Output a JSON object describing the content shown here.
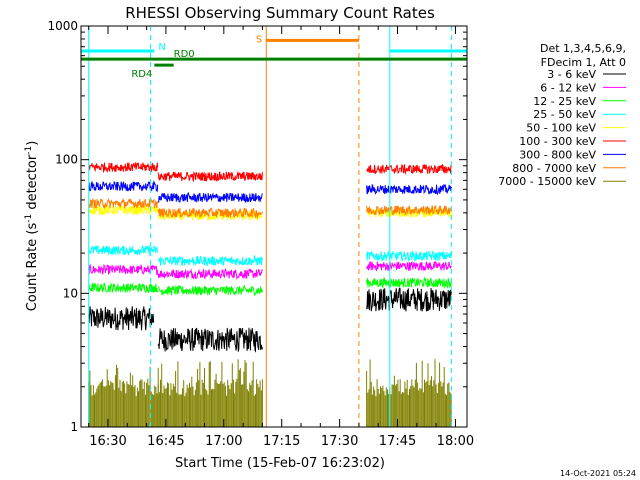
{
  "chart_data": {
    "type": "line",
    "title": "RHESSI Observing Summary Count Rates",
    "xlabel": "Start Time (15-Feb-07 16:23:02)",
    "ylabel": "Count Rate (s",
    "ylabel_sup": "-1",
    "ylabel_tail": " detector",
    "ylabel_close": ")",
    "y_scale": "log",
    "ylim": [
      1,
      1000
    ],
    "y_ticks": [
      {
        "v": 1,
        "label": "1"
      },
      {
        "v": 10,
        "label": "10"
      },
      {
        "v": 100,
        "label": "100"
      },
      {
        "v": 1000,
        "label": "1000"
      }
    ],
    "xlim": [
      "16:23",
      "18:03"
    ],
    "x_ticks": [
      {
        "t": "16:30",
        "label": "16:30"
      },
      {
        "t": "16:45",
        "label": "16:45"
      },
      {
        "t": "17:00",
        "label": "17:00"
      },
      {
        "t": "17:15",
        "label": "17:15"
      },
      {
        "t": "17:30",
        "label": "17:30"
      },
      {
        "t": "17:45",
        "label": "17:45"
      },
      {
        "t": "18:00",
        "label": "18:00"
      }
    ],
    "legend_placement": "right",
    "legend_header": [
      "Det 1,3,4,5,6,9,",
      "FDecim 1, Att 0"
    ],
    "series": [
      {
        "name": "3 - 6 keV",
        "color": "#000000",
        "segments": [
          {
            "from": "16:25",
            "to": "16:42",
            "level": 6.5
          },
          {
            "from": "16:43",
            "to": "17:10",
            "level": 4.5
          },
          {
            "from": "17:37",
            "to": "17:59",
            "level": 9
          }
        ]
      },
      {
        "name": "6 - 12 keV",
        "color": "#ff00ff",
        "segments": [
          {
            "from": "16:25",
            "to": "16:43",
            "level": 15
          },
          {
            "from": "16:43",
            "to": "17:10",
            "level": 14
          },
          {
            "from": "17:37",
            "to": "17:59",
            "level": 16
          }
        ]
      },
      {
        "name": "12 - 25 keV",
        "color": "#00ff00",
        "segments": [
          {
            "from": "16:25",
            "to": "16:43",
            "level": 11
          },
          {
            "from": "16:43",
            "to": "17:10",
            "level": 10.5
          },
          {
            "from": "17:37",
            "to": "17:59",
            "level": 12
          }
        ]
      },
      {
        "name": "25 - 50 keV",
        "color": "#00ffff",
        "segments": [
          {
            "from": "16:25",
            "to": "16:43",
            "level": 21
          },
          {
            "from": "16:43",
            "to": "17:10",
            "level": 17.5
          },
          {
            "from": "17:37",
            "to": "17:59",
            "level": 19
          }
        ]
      },
      {
        "name": "50 - 100 keV",
        "color": "#ffff00",
        "segments": [
          {
            "from": "16:25",
            "to": "16:43",
            "level": 42
          },
          {
            "from": "16:43",
            "to": "17:10",
            "level": 38
          },
          {
            "from": "17:37",
            "to": "17:59",
            "level": 40
          }
        ]
      },
      {
        "name": "100 - 300 keV",
        "color": "#ff0000",
        "segments": [
          {
            "from": "16:25",
            "to": "16:43",
            "level": 88
          },
          {
            "from": "16:43",
            "to": "17:10",
            "level": 75
          },
          {
            "from": "17:37",
            "to": "17:59",
            "level": 85
          }
        ]
      },
      {
        "name": "300 - 800 keV",
        "color": "#0000ff",
        "segments": [
          {
            "from": "16:25",
            "to": "16:43",
            "level": 63
          },
          {
            "from": "16:43",
            "to": "17:10",
            "level": 52
          },
          {
            "from": "17:37",
            "to": "17:59",
            "level": 60
          }
        ]
      },
      {
        "name": "800 - 7000 keV",
        "color": "#ff8000",
        "segments": [
          {
            "from": "16:25",
            "to": "16:43",
            "level": 47
          },
          {
            "from": "16:43",
            "to": "17:10",
            "level": 40
          },
          {
            "from": "17:37",
            "to": "17:59",
            "level": 42
          }
        ]
      },
      {
        "name": "7000 - 15000 keV",
        "color": "#808000",
        "segments": [
          {
            "from": "16:25",
            "to": "16:43",
            "level": 1.5
          },
          {
            "from": "16:43",
            "to": "17:10",
            "level": 1.5
          },
          {
            "from": "17:37",
            "to": "17:59",
            "level": 1.5
          }
        ]
      }
    ],
    "vertical_markers": [
      {
        "t": "16:25",
        "color": "#00ffff",
        "style": "solid"
      },
      {
        "t": "16:41",
        "color": "#00ffff",
        "style": "dashed"
      },
      {
        "t": "17:11",
        "color": "#ff8000",
        "style": "solid"
      },
      {
        "t": "17:35",
        "color": "#ff8000",
        "style": "dashed"
      },
      {
        "t": "17:43",
        "color": "#00ffff",
        "style": "solid"
      },
      {
        "t": "17:59",
        "color": "#00ffff",
        "style": "dashed"
      }
    ],
    "flag_bars": [
      {
        "label": "N",
        "color": "#00ffff",
        "from": "16:23",
        "to": "16:42",
        "level": 650
      },
      {
        "label": "",
        "color": "#00ffff",
        "from": "17:43",
        "to": "18:03",
        "level": 650
      },
      {
        "label": "RD0",
        "color": "#008000",
        "from": "16:23",
        "to": "18:03",
        "level": 565
      },
      {
        "label": "RD4",
        "color": "#008000",
        "from": "16:42",
        "to": "16:47",
        "level": 510
      },
      {
        "label": "S",
        "color": "#ff8000",
        "from": "17:11",
        "to": "17:35",
        "level": 780
      }
    ],
    "footer_timestamp": "14-Oct-2021 05:24"
  }
}
